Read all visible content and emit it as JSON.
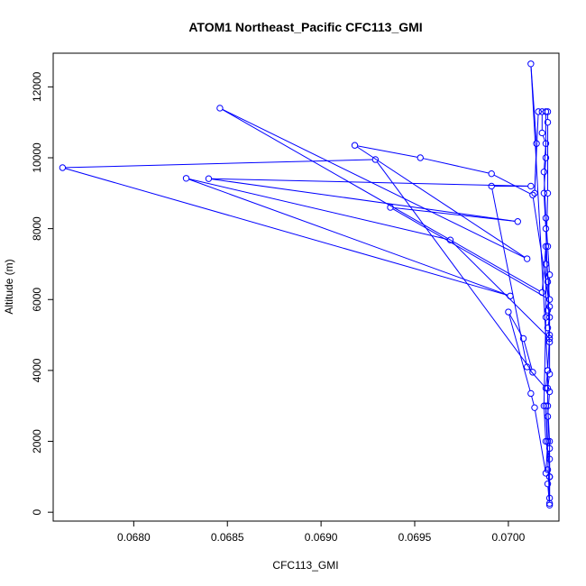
{
  "chart_data": {
    "type": "line",
    "title": "ATOM1 Northeast_Pacific CFC113_GMI",
    "xlabel": "CFC113_GMI",
    "ylabel": "Altitude (m)",
    "xlim": [
      0.06757,
      0.07027
    ],
    "ylim": [
      -250,
      12950
    ],
    "x_ticks": [
      0.068,
      0.0685,
      0.069,
      0.0695,
      0.07
    ],
    "x_tick_labels": [
      "0.0680",
      "0.0685",
      "0.0690",
      "0.0695",
      "0.0700"
    ],
    "y_ticks": [
      0,
      2000,
      4000,
      6000,
      8000,
      10000,
      12000
    ],
    "y_tick_labels": [
      "0",
      "2000",
      "4000",
      "6000",
      "8000",
      "10000",
      "12000"
    ],
    "grid": false,
    "legend": "none",
    "series": [
      {
        "color": "#0000ff",
        "marker": "open-circle",
        "points": [
          [
            0.07022,
            200
          ],
          [
            0.07021,
            800
          ],
          [
            0.07022,
            1000
          ],
          [
            0.07021,
            1200
          ],
          [
            0.07022,
            1800
          ],
          [
            0.07021,
            2700
          ],
          [
            0.07022,
            3400
          ],
          [
            0.07021,
            3500
          ],
          [
            0.07022,
            3900
          ],
          [
            0.07022,
            4800
          ],
          [
            0.07021,
            5200
          ],
          [
            0.07022,
            5500
          ],
          [
            0.07021,
            5700
          ],
          [
            0.07022,
            6700
          ],
          [
            0.07021,
            7500
          ],
          [
            0.0702,
            8300
          ],
          [
            0.07019,
            9600
          ],
          [
            0.0702,
            10400
          ],
          [
            0.07018,
            10700
          ],
          [
            0.07018,
            11300
          ],
          [
            0.07021,
            11300
          ],
          [
            0.07021,
            11000
          ],
          [
            0.07021,
            9000
          ],
          [
            0.0702,
            7000
          ],
          [
            0.0702,
            5500
          ],
          [
            0.07019,
            3000
          ],
          [
            0.0702,
            2000
          ],
          [
            0.07022,
            1500
          ],
          [
            0.07022,
            250
          ],
          [
            0.0702,
            3000
          ],
          [
            0.07021,
            2000
          ],
          [
            0.0702,
            1100
          ],
          [
            0.07014,
            2950
          ],
          [
            0.07012,
            3350
          ],
          [
            0.07,
            5650
          ],
          [
            0.07008,
            4900
          ],
          [
            0.07013,
            3950
          ],
          [
            0.06929,
            9950
          ],
          [
            0.06762,
            9720
          ],
          [
            0.07001,
            6100
          ],
          [
            0.06828,
            9420
          ],
          [
            0.06969,
            7680
          ],
          [
            0.07022,
            4900
          ],
          [
            0.07022,
            5800
          ],
          [
            0.07013,
            8950
          ],
          [
            0.06991,
            9550
          ],
          [
            0.06953,
            10000
          ],
          [
            0.06918,
            10350
          ],
          [
            0.0701,
            7150
          ],
          [
            0.06846,
            11400
          ],
          [
            0.07018,
            6200
          ],
          [
            0.0702,
            7500
          ],
          [
            0.07022,
            6000
          ],
          [
            0.06937,
            8600
          ],
          [
            0.07005,
            8200
          ],
          [
            0.0684,
            9410
          ],
          [
            0.07012,
            9200
          ],
          [
            0.06991,
            9200
          ],
          [
            0.0701,
            4100
          ],
          [
            0.0702,
            3500
          ],
          [
            0.07021,
            4000
          ],
          [
            0.07012,
            12650
          ],
          [
            0.07015,
            10400
          ],
          [
            0.07014,
            9000
          ],
          [
            0.07016,
            11300
          ],
          [
            0.0702,
            11300
          ],
          [
            0.0702,
            10000
          ],
          [
            0.07019,
            9000
          ],
          [
            0.0702,
            8000
          ],
          [
            0.07021,
            6500
          ],
          [
            0.07022,
            5000
          ],
          [
            0.07021,
            4000
          ],
          [
            0.07021,
            3000
          ],
          [
            0.07022,
            2000
          ],
          [
            0.07022,
            1000
          ],
          [
            0.07022,
            400
          ]
        ]
      }
    ]
  }
}
